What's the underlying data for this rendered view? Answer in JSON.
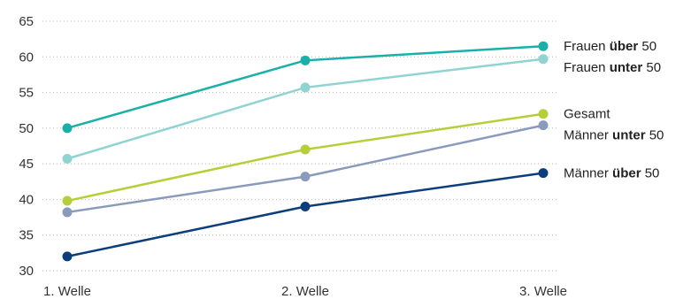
{
  "chart_data": {
    "type": "line",
    "x": [
      "1. Welle",
      "2. Welle",
      "3. Welle"
    ],
    "ylim": [
      30,
      65
    ],
    "yticks": [
      30,
      35,
      40,
      45,
      50,
      55,
      60,
      65
    ],
    "grid": "horizontal dotted",
    "legend": "right, labels at line ends",
    "series": [
      {
        "name": "Frauen über 50",
        "label_parts": [
          "Frauen ",
          "über",
          " 50"
        ],
        "values": [
          50,
          59.5,
          61.5
        ],
        "color": "#1ab0aa"
      },
      {
        "name": "Frauen unter 50",
        "label_parts": [
          "Frauen ",
          "unter",
          " 50"
        ],
        "values": [
          45.7,
          55.7,
          59.7
        ],
        "color": "#8fd4d2"
      },
      {
        "name": "Gesamt",
        "label_parts": [
          "Gesamt",
          "",
          ""
        ],
        "values": [
          39.8,
          47,
          52
        ],
        "color": "#b5cf3b"
      },
      {
        "name": "Männer unter 50",
        "label_parts": [
          "Männer ",
          "unter",
          " 50"
        ],
        "values": [
          38.2,
          43.2,
          50.4
        ],
        "color": "#8a9abd"
      },
      {
        "name": "Männer über 50",
        "label_parts": [
          "Männer ",
          "über",
          " 50"
        ],
        "values": [
          32,
          39,
          43.7
        ],
        "color": "#0d3e7c"
      }
    ]
  }
}
